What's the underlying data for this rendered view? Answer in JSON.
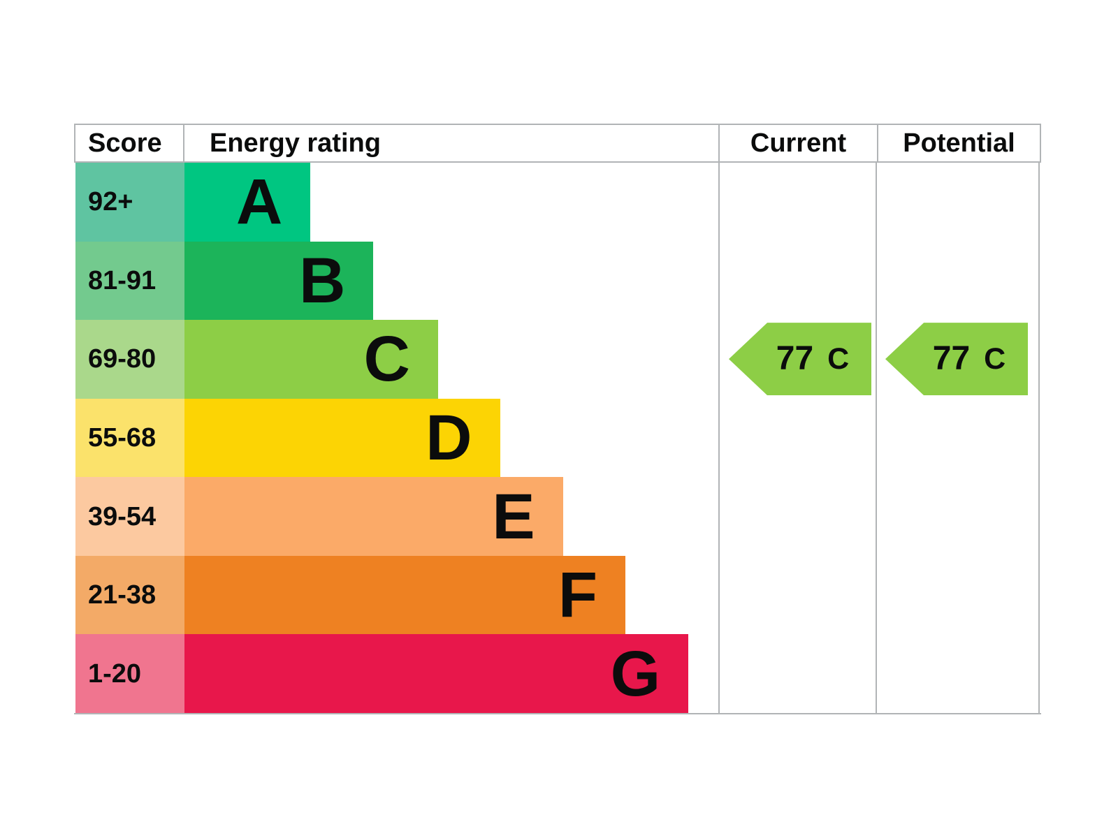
{
  "chart_data": {
    "type": "bar",
    "title": "",
    "columns": {
      "score": "Score",
      "rating": "Energy rating",
      "current": "Current",
      "potential": "Potential"
    },
    "bands": [
      {
        "letter": "A",
        "score": "92+",
        "bar_color": "#00c681",
        "score_color": "#5fc4a1",
        "width_pct": 23.6
      },
      {
        "letter": "B",
        "score": "81-91",
        "bar_color": "#1cb45a",
        "score_color": "#73ca8e",
        "width_pct": 35.4
      },
      {
        "letter": "C",
        "score": "69-80",
        "bar_color": "#8dce46",
        "score_color": "#aad88b",
        "width_pct": 47.5
      },
      {
        "letter": "D",
        "score": "55-68",
        "bar_color": "#fcd404",
        "score_color": "#fbe26b",
        "width_pct": 59.1
      },
      {
        "letter": "E",
        "score": "39-54",
        "bar_color": "#fbaa68",
        "score_color": "#fcc9a0",
        "width_pct": 70.9
      },
      {
        "letter": "F",
        "score": "21-38",
        "bar_color": "#ee8122",
        "score_color": "#f3aa67",
        "width_pct": 82.6
      },
      {
        "letter": "G",
        "score": "1-20",
        "bar_color": "#e8174b",
        "score_color": "#f0758f",
        "width_pct": 94.4
      }
    ],
    "current": {
      "value": "77",
      "band": "C",
      "arrow_color": "#8dce46",
      "band_index": 2
    },
    "potential": {
      "value": "77",
      "band": "C",
      "arrow_color": "#8dce46",
      "band_index": 2
    }
  },
  "colors": {
    "border": "#b1b4b6",
    "text": "#0b0c0c",
    "background": "#ffffff"
  }
}
